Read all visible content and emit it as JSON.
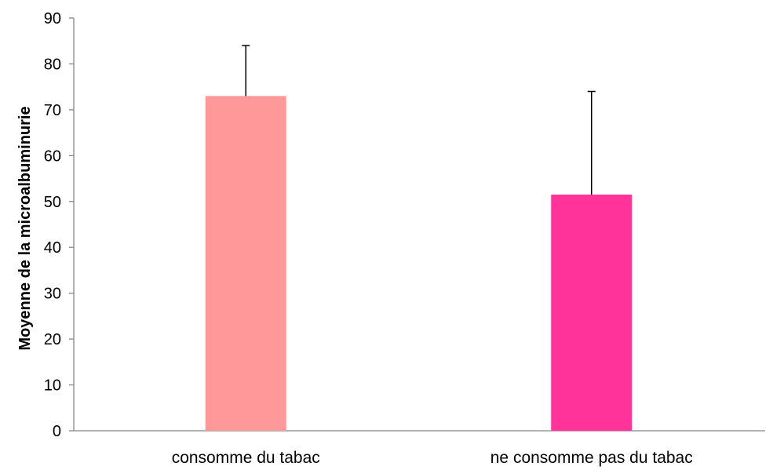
{
  "chart_data": {
    "type": "bar",
    "title": "",
    "xlabel": "",
    "ylabel": "Moyenne de la microalbuminurie",
    "categories": [
      "consomme du tabac",
      "ne consomme pas du tabac"
    ],
    "values": [
      73,
      51.5
    ],
    "error_upper": [
      84,
      74
    ],
    "bar_colors": [
      "#FF9999",
      "#FF3399"
    ],
    "ylim": [
      0,
      90
    ],
    "yticks": [
      0,
      10,
      20,
      30,
      40,
      50,
      60,
      70,
      80,
      90
    ],
    "grid": false,
    "legend": "none",
    "axis_color": "#868686"
  }
}
